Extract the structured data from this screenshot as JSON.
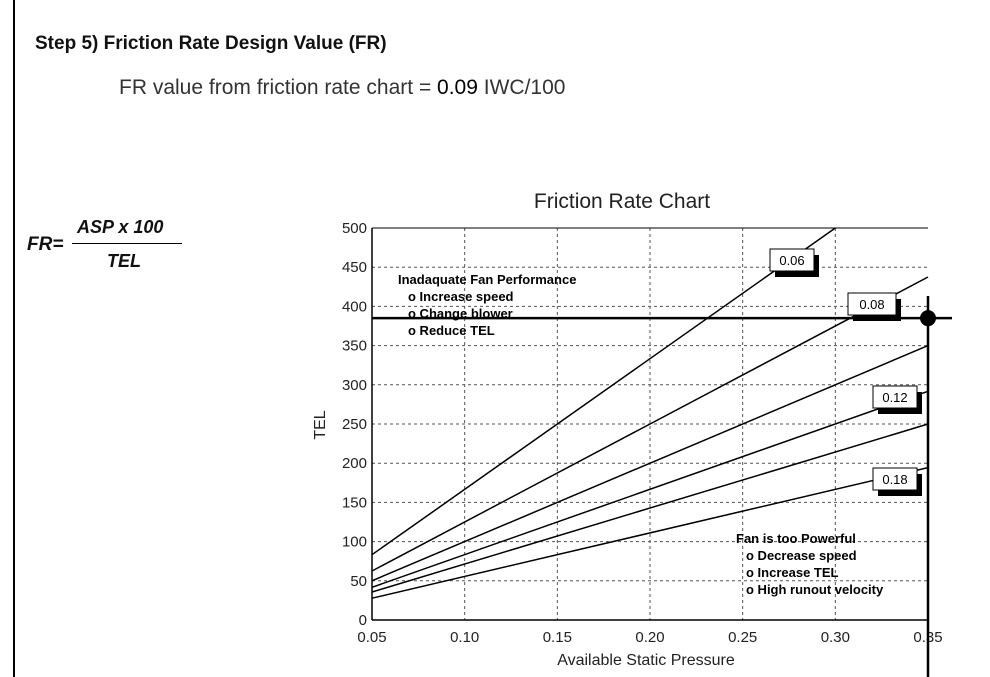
{
  "header": {
    "step_title": "Step 5) Friction Rate Design Value (FR)",
    "fr_line_prefix": "FR value from friction rate chart",
    "fr_line_equals": "=",
    "fr_line_value": "0.09",
    "fr_line_unit": "IWC/100"
  },
  "formula": {
    "lhs": "FR=",
    "numerator": "ASP x 100",
    "denominator": "TEL"
  },
  "chart_data": {
    "type": "line",
    "title": "Friction Rate Chart",
    "xlabel": "Available Static Pressure",
    "ylabel": "TEL",
    "xlim": [
      0.05,
      0.35
    ],
    "ylim": [
      0,
      500
    ],
    "x_ticks": [
      "0.05",
      "0.10",
      "0.15",
      "0.20",
      "0.25",
      "0.30",
      "0.35"
    ],
    "y_ticks": [
      "0",
      "50",
      "100",
      "150",
      "200",
      "250",
      "300",
      "350",
      "400",
      "450",
      "500"
    ],
    "grid": true,
    "series": [
      {
        "name": "0.06",
        "x": [
          0.05,
          0.3
        ],
        "y": [
          83.3,
          500
        ]
      },
      {
        "name": "0.08",
        "x": [
          0.05,
          0.35
        ],
        "y": [
          62.5,
          437.5
        ]
      },
      {
        "name": "",
        "x": [
          0.05,
          0.35
        ],
        "y": [
          50,
          350
        ]
      },
      {
        "name": "0.12",
        "x": [
          0.05,
          0.35
        ],
        "y": [
          41.7,
          291.7
        ]
      },
      {
        "name": "",
        "x": [
          0.05,
          0.35
        ],
        "y": [
          35.7,
          250
        ]
      },
      {
        "name": "0.18",
        "x": [
          0.05,
          0.35
        ],
        "y": [
          27.8,
          194.4
        ]
      }
    ],
    "marker": {
      "x": 0.35,
      "y": 385
    },
    "annotations": [
      {
        "lines": [
          "Inadaquate Fan Performance",
          "o Increase speed",
          "o Change blower",
          "o Reduce TEL"
        ]
      },
      {
        "lines": [
          "Fan is too Powerful",
          "o Decrease speed",
          "o Increase TEL",
          "o High runout velocity"
        ]
      }
    ],
    "colors": {
      "lines": "#000000",
      "grid": "#555555"
    }
  }
}
